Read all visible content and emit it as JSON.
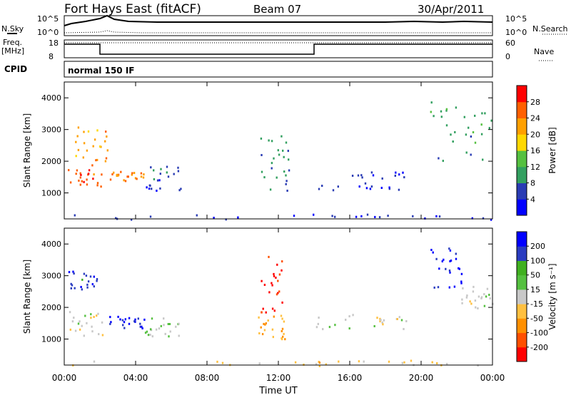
{
  "header": {
    "station": "Fort Hays East (fitACF)",
    "beam": "Beam 07",
    "date": "30/Apr/2011"
  },
  "summary": {
    "nsky_label": "N.Sky",
    "nsearch_label": "N.Search",
    "noise_ticks": [
      "10^5",
      "10^0"
    ],
    "freq_label_line1": "Freq.",
    "freq_label_line2": "[MHz]",
    "freq_ticks": [
      "18",
      "8"
    ],
    "nave_label": "Nave",
    "nave_ticks": [
      "60",
      "0"
    ],
    "cpid_label": "CPID",
    "cpid_value": "normal 150 IF"
  },
  "colors": {
    "power_scale": [
      "#0000ff",
      "#2a3cb4",
      "#33a060",
      "#55c040",
      "#ffd800",
      "#ffa000",
      "#ff6000",
      "#ff0000"
    ],
    "velocity_scale": [
      "#ff0000",
      "#ff5000",
      "#ff9000",
      "#ffc040",
      "#c8c8c8",
      "#55c040",
      "#40b020",
      "#2a3cc0",
      "#0000ff"
    ]
  },
  "chart_data": [
    {
      "type": "heatmap",
      "name": "power",
      "xlabel": "Time UT",
      "ylabel": "Slant Range [km]",
      "colorbar_label": "Power [dB]",
      "colorbar_ticks": [
        "4",
        "8",
        "12",
        "16",
        "20",
        "24",
        "28"
      ],
      "ylim": [
        180,
        4500
      ],
      "y_ticks": [
        "1000",
        "2000",
        "3000",
        "4000"
      ],
      "x_ticks": [
        "00:00",
        "04:00",
        "08:00",
        "12:00",
        "16:00",
        "20:00",
        "00:00"
      ],
      "xlim_hours": [
        0,
        24
      ],
      "regions": [
        {
          "t": [
            0.2,
            2.2
          ],
          "r": [
            1200,
            1800
          ],
          "value": 26
        },
        {
          "t": [
            0.6,
            2.5
          ],
          "r": [
            1900,
            3100
          ],
          "value": 22
        },
        {
          "t": [
            2.5,
            4.5
          ],
          "r": [
            1350,
            1700
          ],
          "value": 24
        },
        {
          "t": [
            4.5,
            6.5
          ],
          "r": [
            1100,
            1900
          ],
          "value": 6
        },
        {
          "t": [
            10.8,
            12.6
          ],
          "r": [
            1100,
            2900
          ],
          "value": 8
        },
        {
          "t": [
            14.0,
            19.2
          ],
          "r": [
            1100,
            1700
          ],
          "value": 5
        },
        {
          "t": [
            20.5,
            24
          ],
          "r": [
            2000,
            3900
          ],
          "value": 10
        },
        {
          "t": [
            0.0,
            24.0
          ],
          "r": [
            180,
            350
          ],
          "value": 5
        }
      ]
    },
    {
      "type": "heatmap",
      "name": "velocity",
      "xlabel": "Time UT",
      "ylabel": "Slant Range [km]",
      "colorbar_label": "Velocity [m s⁻¹]",
      "colorbar_ticks": [
        "-200",
        "-100",
        "-50",
        "-15",
        "15",
        "50",
        "100",
        "200"
      ],
      "ylim": [
        180,
        4500
      ],
      "y_ticks": [
        "1000",
        "2000",
        "3000",
        "4000"
      ],
      "x_ticks": [
        "00:00",
        "04:00",
        "08:00",
        "12:00",
        "16:00",
        "20:00",
        "00:00"
      ],
      "xlim_hours": [
        0,
        24
      ],
      "regions": [
        {
          "t": [
            0.2,
            2.2
          ],
          "r": [
            1100,
            1900
          ],
          "value": 0
        },
        {
          "t": [
            0.2,
            1.8
          ],
          "r": [
            2600,
            3200
          ],
          "value": 180
        },
        {
          "t": [
            2.5,
            4.5
          ],
          "r": [
            1350,
            1750
          ],
          "value": 200
        },
        {
          "t": [
            4.5,
            6.5
          ],
          "r": [
            1100,
            1700
          ],
          "value": 30
        },
        {
          "t": [
            11.0,
            12.2
          ],
          "r": [
            1800,
            3700
          ],
          "value": -200
        },
        {
          "t": [
            10.8,
            12.4
          ],
          "r": [
            1000,
            1800
          ],
          "value": -80
        },
        {
          "t": [
            14.0,
            19.2
          ],
          "r": [
            1300,
            1800
          ],
          "value": 0
        },
        {
          "t": [
            20.5,
            22.5
          ],
          "r": [
            2600,
            3900
          ],
          "value": 200
        },
        {
          "t": [
            22.0,
            24
          ],
          "r": [
            2000,
            2700
          ],
          "value": 0
        },
        {
          "t": [
            0.0,
            24.0
          ],
          "r": [
            180,
            350
          ],
          "value": -40
        }
      ]
    }
  ]
}
